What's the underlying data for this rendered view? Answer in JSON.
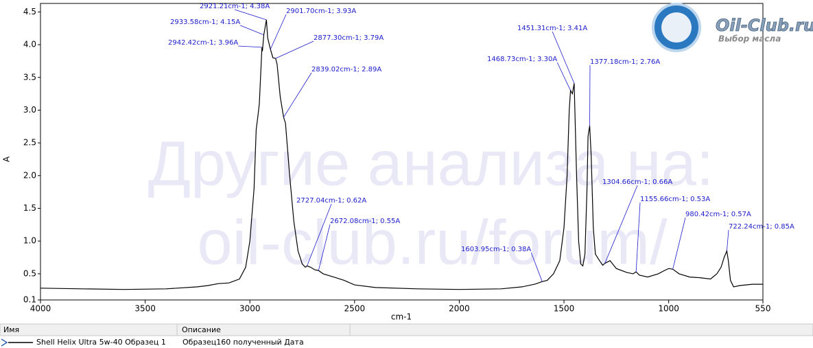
{
  "chart_data": {
    "type": "line",
    "xlabel": "cm-1",
    "ylabel": "A",
    "xlim": [
      4000,
      550
    ],
    "ylim": [
      0.1,
      4.63
    ],
    "xticks": [
      4000,
      3500,
      3000,
      2500,
      2000,
      1500,
      1000,
      550
    ],
    "yticks": [
      0.1,
      0.5,
      {
        "value": 1,
        "label": "1.0"
      },
      1.5,
      {
        "value": 2,
        "label": "2.0"
      },
      2.5,
      {
        "value": 3,
        "label": "3.0"
      },
      3.5,
      {
        "value": 4,
        "label": "4.0"
      },
      4.5
    ],
    "x": [
      4000,
      3800,
      3600,
      3400,
      3250,
      3200,
      3150,
      3100,
      3050,
      3020,
      3000,
      2980,
      2970,
      2962,
      2955,
      2942.42,
      2940,
      2933.58,
      2921.21,
      2915,
      2901.7,
      2890,
      2877.3,
      2870,
      2855,
      2839.02,
      2830,
      2810,
      2790,
      2770,
      2750,
      2735,
      2727.04,
      2710,
      2690,
      2672.08,
      2650,
      2600,
      2550,
      2500,
      2400,
      2200,
      2000,
      1800,
      1700,
      1640,
      1603.95,
      1580,
      1550,
      1520,
      1500,
      1485,
      1475,
      1468.73,
      1460,
      1451.31,
      1440,
      1430,
      1420,
      1410,
      1400,
      1390,
      1385,
      1377.18,
      1370,
      1360,
      1350,
      1330,
      1315,
      1304.66,
      1280,
      1250,
      1200,
      1170,
      1155.66,
      1140,
      1100,
      1050,
      1020,
      1000,
      980.42,
      950,
      900,
      850,
      800,
      770,
      750,
      735,
      722.24,
      715,
      705,
      690,
      660,
      600,
      550
    ],
    "series": [
      {
        "name": "Shell Helix Ultra 5w-40 Образец 1",
        "color": "#000000",
        "values": [
          0.28,
          0.27,
          0.26,
          0.27,
          0.3,
          0.32,
          0.35,
          0.36,
          0.42,
          0.6,
          1.0,
          1.8,
          2.7,
          2.9,
          3.1,
          3.96,
          3.9,
          4.15,
          4.38,
          4.1,
          3.93,
          3.8,
          3.79,
          3.7,
          3.2,
          2.89,
          2.8,
          2.0,
          1.3,
          0.85,
          0.65,
          0.6,
          0.62,
          0.6,
          0.56,
          0.55,
          0.5,
          0.45,
          0.4,
          0.33,
          0.29,
          0.27,
          0.26,
          0.27,
          0.3,
          0.34,
          0.38,
          0.4,
          0.5,
          0.7,
          1.2,
          2.0,
          3.0,
          3.3,
          3.25,
          3.41,
          2.0,
          1.0,
          0.65,
          0.62,
          0.8,
          1.8,
          2.6,
          2.76,
          2.3,
          1.2,
          0.8,
          0.7,
          0.63,
          0.66,
          0.7,
          0.58,
          0.52,
          0.5,
          0.53,
          0.48,
          0.45,
          0.5,
          0.55,
          0.58,
          0.57,
          0.5,
          0.45,
          0.44,
          0.42,
          0.5,
          0.6,
          0.75,
          0.85,
          0.7,
          0.4,
          0.3,
          0.32,
          0.34,
          0.34
        ]
      }
    ],
    "annotations": [
      {
        "x": 2921.21,
        "y": 4.38,
        "label": "2921.21cm-1; 4.38A"
      },
      {
        "x": 2901.7,
        "y": 3.93,
        "label": "2901.70cm-1; 3.93A"
      },
      {
        "x": 2933.58,
        "y": 4.15,
        "label": "2933.58cm-1; 4.15A"
      },
      {
        "x": 2877.3,
        "y": 3.79,
        "label": "2877.30cm-1; 3.79A"
      },
      {
        "x": 2942.42,
        "y": 3.96,
        "label": "2942.42cm-1; 3.96A"
      },
      {
        "x": 2839.02,
        "y": 2.89,
        "label": "2839.02cm-1; 2.89A"
      },
      {
        "x": 2727.04,
        "y": 0.62,
        "label": "2727.04cm-1; 0.62A"
      },
      {
        "x": 2672.08,
        "y": 0.55,
        "label": "2672.08cm-1; 0.55A"
      },
      {
        "x": 1603.95,
        "y": 0.38,
        "label": "1603.95cm-1; 0.38A"
      },
      {
        "x": 1451.31,
        "y": 3.41,
        "label": "1451.31cm-1; 3.41A"
      },
      {
        "x": 1468.73,
        "y": 3.3,
        "label": "1468.73cm-1; 3.30A"
      },
      {
        "x": 1377.18,
        "y": 2.76,
        "label": "1377.18cm-1; 2.76A"
      },
      {
        "x": 1304.66,
        "y": 0.66,
        "label": "1304.66cm-1; 0.66A"
      },
      {
        "x": 1155.66,
        "y": 0.53,
        "label": "1155.66cm-1; 0.53A"
      },
      {
        "x": 980.42,
        "y": 0.57,
        "label": "980.42cm-1; 0.57A"
      },
      {
        "x": 722.24,
        "y": 0.85,
        "label": "722.24cm-1; 0.85A"
      }
    ]
  },
  "watermark": [
    "Другие анализа на:",
    "oil-club.ru/forum/"
  ],
  "logo": {
    "title": "Oil-Club.ru",
    "subtitle": "Выбор масла"
  },
  "legend_table": {
    "headers": [
      "Имя",
      "Описание"
    ],
    "rows": [
      [
        "Shell Helix Ultra 5w-40 Образец 1",
        "Образец160 полученный  Дата"
      ]
    ]
  }
}
